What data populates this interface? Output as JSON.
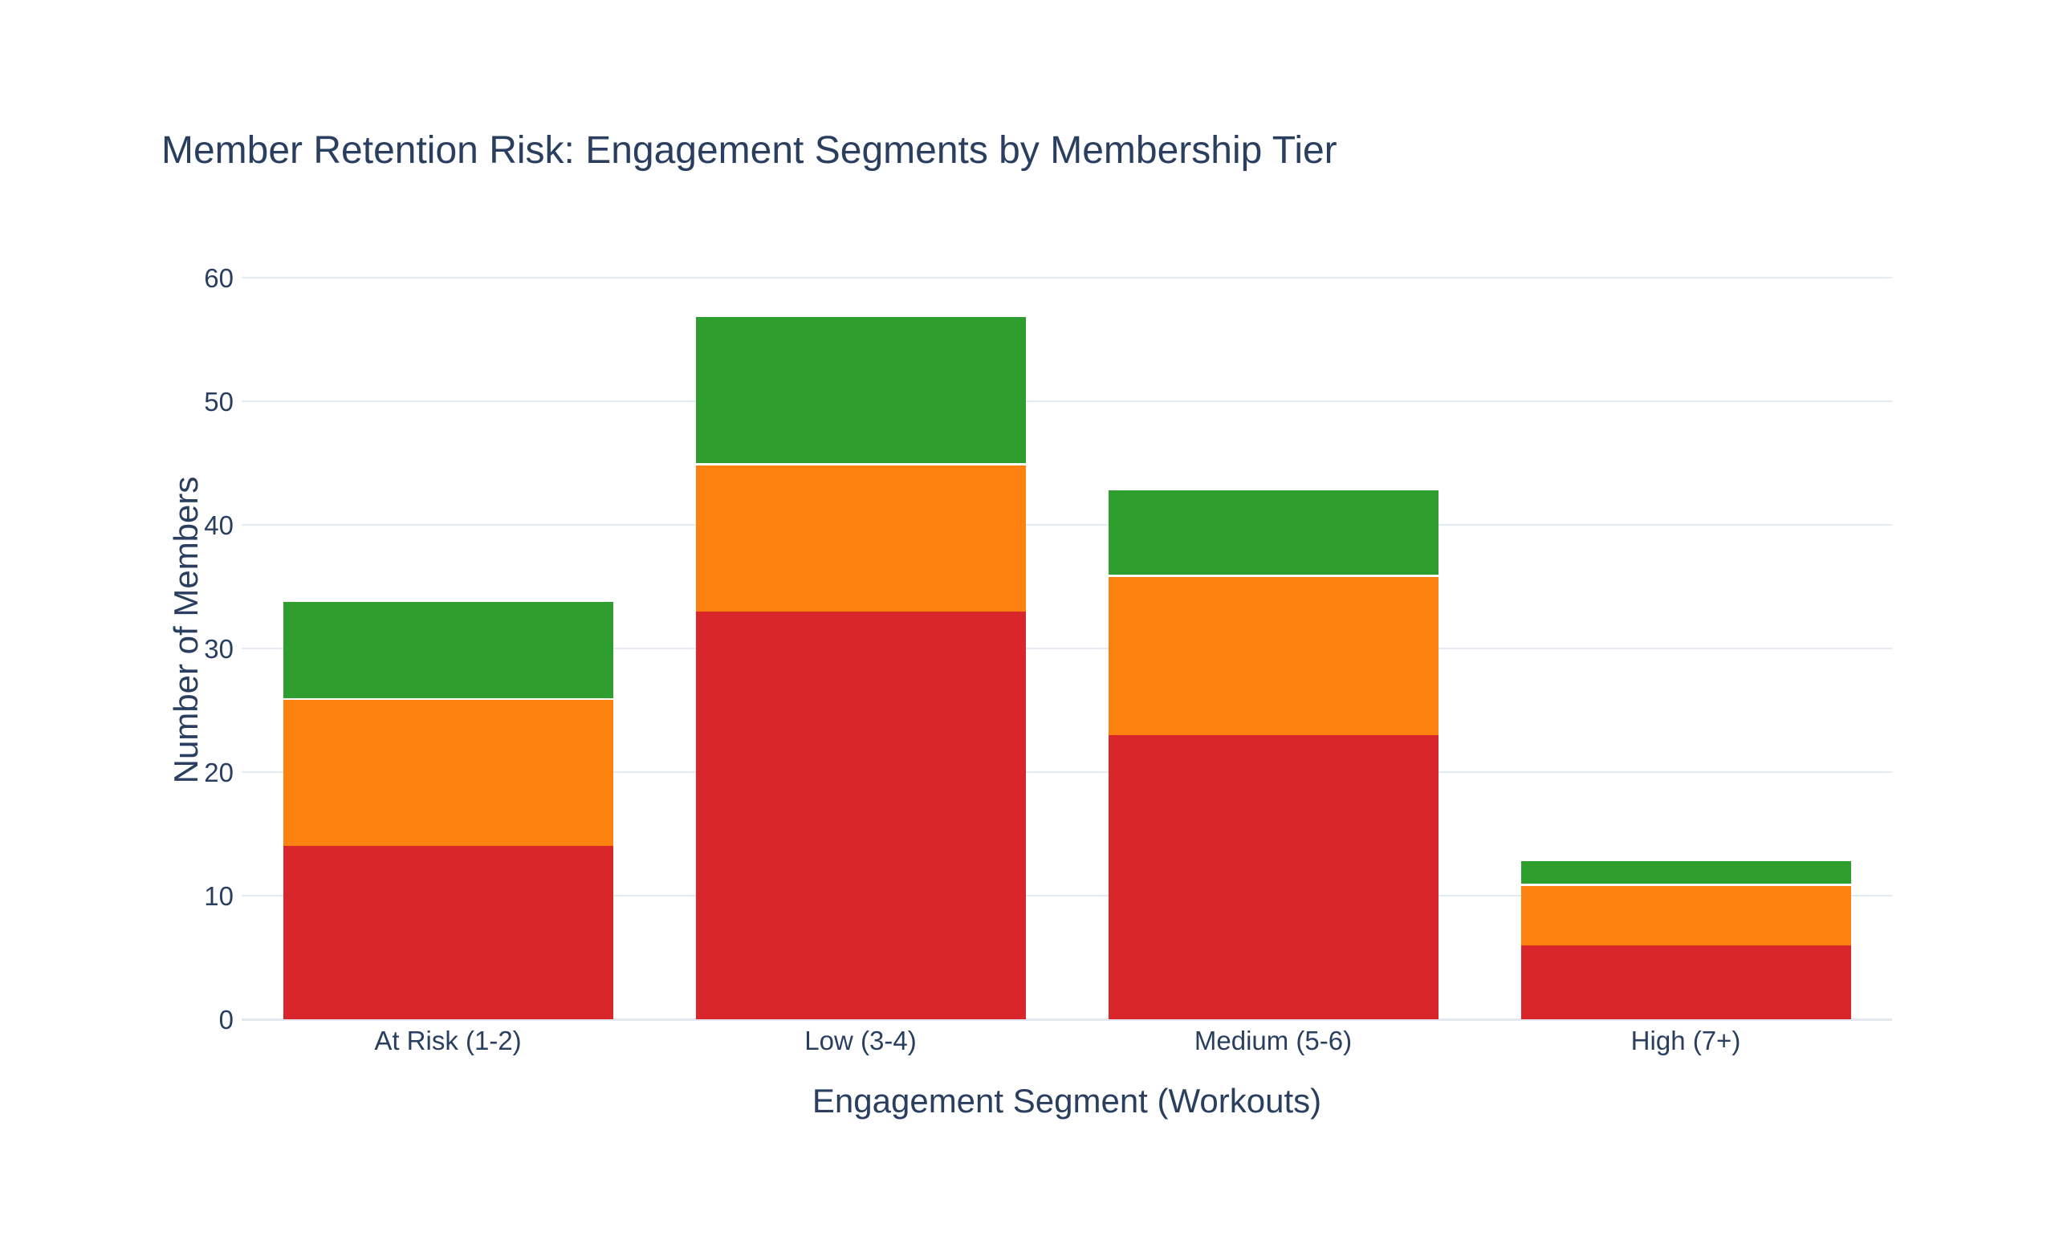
{
  "chart": {
    "title": "Member Retention Risk: Engagement Segments by Membership Tier",
    "xlabel": "Engagement Segment (Workouts)",
    "ylabel": "Number of Members"
  },
  "chart_data": {
    "type": "bar",
    "stacked": true,
    "title": "Member Retention Risk: Engagement Segments by Membership Tier",
    "xlabel": "Engagement Segment (Workouts)",
    "ylabel": "Number of Members",
    "categories": [
      "At Risk (1-2)",
      "Low (3-4)",
      "Medium (5-6)",
      "High (7+)"
    ],
    "series": [
      {
        "name": "red-bottom-segment",
        "color": "#d9262a",
        "values": [
          14,
          33,
          23,
          6
        ]
      },
      {
        "name": "orange-middle-segment",
        "color": "#fd810e",
        "values": [
          12,
          12,
          13,
          5
        ]
      },
      {
        "name": "green-top-segment",
        "color": "#2e9e2e",
        "values": [
          8,
          12,
          7,
          2
        ]
      }
    ],
    "stack_totals": [
      34,
      57,
      43,
      13
    ],
    "yticks": [
      0,
      10,
      20,
      30,
      40,
      50,
      60
    ],
    "ylim": [
      0,
      63
    ],
    "grid": true,
    "legend": false
  },
  "colors": {
    "background": "#ffffff",
    "text": "#2a3f5f",
    "gridline": "#e4eaf4",
    "zeroline": "#e3e8f0",
    "segment_border": "#ffffff"
  }
}
